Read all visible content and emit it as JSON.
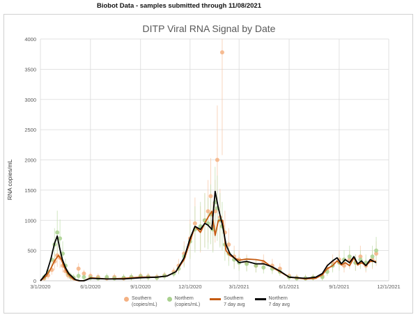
{
  "header": {
    "text": "Biobot Data - samples submitted through 11/08/2021"
  },
  "colors": {
    "southern_dot": "#f4b183",
    "northern_dot": "#a9d18e",
    "southern_line": "#c55a11",
    "northern_line": "#000000",
    "southern_err": "#f8cbad",
    "northern_err": "#c5e0b4",
    "grid": "#d9d9d9"
  },
  "chart_data": {
    "type": "scatter",
    "title": "DITP Viral RNA Signal by Date",
    "ylabel": "RNA copies/mL",
    "xlabel": "",
    "ylim": [
      0,
      4000
    ],
    "yticks": [
      "0",
      "500",
      "1000",
      "1500",
      "2000",
      "2500",
      "3000",
      "3500",
      "4000"
    ],
    "xticks": [
      "3/1/2020",
      "6/1/2020",
      "9/1/2020",
      "12/1/2020",
      "3/1/2021",
      "6/1/2021",
      "9/1/2021",
      "12/1/2021"
    ],
    "grid": true,
    "legend_position": "bottom",
    "series": [
      {
        "name": "Southern (copies/mL)",
        "kind": "points",
        "x": [
          "2020-03-08",
          "2020-03-15",
          "2020-03-22",
          "2020-03-27",
          "2020-04-01",
          "2020-04-06",
          "2020-04-11",
          "2020-04-16",
          "2020-04-21",
          "2020-04-26",
          "2020-05-01",
          "2020-05-10",
          "2020-05-20",
          "2020-06-01",
          "2020-06-15",
          "2020-07-01",
          "2020-07-15",
          "2020-08-01",
          "2020-08-15",
          "2020-09-01",
          "2020-09-15",
          "2020-10-01",
          "2020-10-15",
          "2020-11-01",
          "2020-11-10",
          "2020-11-20",
          "2020-12-01",
          "2020-12-10",
          "2020-12-20",
          "2020-12-28",
          "2021-01-03",
          "2021-01-08",
          "2021-01-12",
          "2021-01-16",
          "2021-01-20",
          "2021-01-25",
          "2021-01-29",
          "2021-02-03",
          "2021-02-10",
          "2021-02-20",
          "2021-03-01",
          "2021-03-15",
          "2021-04-01",
          "2021-04-15",
          "2021-05-01",
          "2021-05-15",
          "2021-06-01",
          "2021-06-15",
          "2021-07-01",
          "2021-07-15",
          "2021-08-01",
          "2021-08-10",
          "2021-08-20",
          "2021-09-01",
          "2021-09-10",
          "2021-09-20",
          "2021-10-01",
          "2021-10-10",
          "2021-10-20",
          "2021-11-01",
          "2021-11-08"
        ],
        "values": [
          40,
          90,
          180,
          320,
          420,
          380,
          250,
          160,
          90,
          60,
          40,
          200,
          120,
          80,
          60,
          40,
          60,
          40,
          60,
          80,
          70,
          60,
          90,
          150,
          250,
          450,
          700,
          950,
          850,
          1000,
          1150,
          1400,
          900,
          1150,
          2000,
          1050,
          3780,
          800,
          600,
          400,
          350,
          300,
          250,
          300,
          250,
          200,
          80,
          50,
          40,
          50,
          80,
          200,
          300,
          350,
          250,
          350,
          300,
          400,
          250,
          350,
          450
        ]
      },
      {
        "name": "Northern (copies/mL)",
        "kind": "points",
        "x": [
          "2020-03-08",
          "2020-03-15",
          "2020-03-22",
          "2020-03-27",
          "2020-04-01",
          "2020-04-06",
          "2020-04-11",
          "2020-04-16",
          "2020-04-21",
          "2020-04-26",
          "2020-05-01",
          "2020-05-10",
          "2020-05-20",
          "2020-06-01",
          "2020-06-15",
          "2020-07-01",
          "2020-07-15",
          "2020-08-01",
          "2020-08-15",
          "2020-09-01",
          "2020-09-15",
          "2020-10-01",
          "2020-10-15",
          "2020-11-01",
          "2020-11-10",
          "2020-11-20",
          "2020-12-01",
          "2020-12-10",
          "2020-12-20",
          "2020-12-28",
          "2021-01-03",
          "2021-01-08",
          "2021-01-12",
          "2021-01-16",
          "2021-01-20",
          "2021-01-25",
          "2021-01-29",
          "2021-02-03",
          "2021-02-10",
          "2021-02-20",
          "2021-03-01",
          "2021-03-15",
          "2021-04-01",
          "2021-04-15",
          "2021-05-01",
          "2021-05-15",
          "2021-06-01",
          "2021-06-15",
          "2021-07-01",
          "2021-07-15",
          "2021-08-01",
          "2021-08-10",
          "2021-08-20",
          "2021-09-01",
          "2021-09-10",
          "2021-09-20",
          "2021-10-01",
          "2021-10-10",
          "2021-10-20",
          "2021-11-01",
          "2021-11-08"
        ],
        "values": [
          60,
          150,
          350,
          600,
          800,
          700,
          450,
          250,
          120,
          70,
          50,
          80,
          60,
          50,
          40,
          60,
          40,
          50,
          60,
          70,
          60,
          50,
          80,
          120,
          200,
          400,
          650,
          850,
          900,
          1000,
          950,
          1100,
          850,
          1300,
          1200,
          1000,
          900,
          600,
          450,
          350,
          300,
          280,
          250,
          220,
          200,
          150,
          60,
          40,
          40,
          50,
          60,
          150,
          250,
          300,
          350,
          400,
          300,
          350,
          300,
          400,
          500
        ]
      },
      {
        "name": "Southern 7 day avg",
        "kind": "line",
        "x": [
          "2020-03-01",
          "2020-03-12",
          "2020-03-20",
          "2020-03-27",
          "2020-04-03",
          "2020-04-08",
          "2020-04-14",
          "2020-04-20",
          "2020-04-26",
          "2020-05-02",
          "2020-05-10",
          "2020-05-20",
          "2020-06-01",
          "2020-07-01",
          "2020-08-01",
          "2020-09-01",
          "2020-10-01",
          "2020-10-20",
          "2020-11-05",
          "2020-11-20",
          "2020-12-01",
          "2020-12-10",
          "2020-12-20",
          "2020-12-28",
          "2021-01-03",
          "2021-01-10",
          "2021-01-16",
          "2021-01-22",
          "2021-01-30",
          "2021-02-05",
          "2021-02-12",
          "2021-02-20",
          "2021-03-01",
          "2021-03-15",
          "2021-04-01",
          "2021-04-15",
          "2021-05-01",
          "2021-05-15",
          "2021-06-01",
          "2021-07-01",
          "2021-07-20",
          "2021-08-01",
          "2021-08-10",
          "2021-08-20",
          "2021-08-28",
          "2021-09-05",
          "2021-09-12",
          "2021-09-20",
          "2021-09-28",
          "2021-10-05",
          "2021-10-12",
          "2021-10-20",
          "2021-10-28",
          "2021-11-08"
        ],
        "values": [
          0,
          80,
          200,
          330,
          420,
          360,
          220,
          120,
          60,
          20,
          0,
          0,
          50,
          30,
          40,
          60,
          60,
          80,
          150,
          350,
          650,
          900,
          800,
          950,
          1050,
          1150,
          750,
          1000,
          1000,
          500,
          420,
          380,
          340,
          360,
          350,
          330,
          220,
          150,
          60,
          30,
          40,
          100,
          200,
          250,
          330,
          260,
          300,
          250,
          380,
          260,
          300,
          250,
          320,
          320
        ]
      },
      {
        "name": "Northern 7 day avg",
        "kind": "line",
        "x": [
          "2020-03-01",
          "2020-03-12",
          "2020-03-20",
          "2020-03-27",
          "2020-04-01",
          "2020-04-05",
          "2020-04-10",
          "2020-04-16",
          "2020-04-22",
          "2020-04-28",
          "2020-05-04",
          "2020-05-12",
          "2020-05-20",
          "2020-06-01",
          "2020-07-01",
          "2020-08-01",
          "2020-09-01",
          "2020-10-01",
          "2020-10-20",
          "2020-11-05",
          "2020-11-20",
          "2020-12-01",
          "2020-12-10",
          "2020-12-20",
          "2020-12-28",
          "2021-01-03",
          "2021-01-10",
          "2021-01-16",
          "2021-01-22",
          "2021-01-30",
          "2021-02-05",
          "2021-02-12",
          "2021-02-20",
          "2021-03-01",
          "2021-03-15",
          "2021-04-01",
          "2021-04-15",
          "2021-05-01",
          "2021-05-15",
          "2021-06-01",
          "2021-07-01",
          "2021-07-20",
          "2021-08-01",
          "2021-08-10",
          "2021-08-20",
          "2021-08-28",
          "2021-09-05",
          "2021-09-12",
          "2021-09-20",
          "2021-09-28",
          "2021-10-05",
          "2021-10-12",
          "2021-10-20",
          "2021-10-28",
          "2021-11-08"
        ],
        "values": [
          0,
          120,
          350,
          620,
          740,
          560,
          360,
          220,
          120,
          70,
          20,
          0,
          0,
          40,
          30,
          30,
          50,
          60,
          80,
          150,
          380,
          700,
          900,
          850,
          950,
          920,
          850,
          1480,
          1200,
          900,
          600,
          450,
          380,
          300,
          320,
          280,
          280,
          230,
          160,
          60,
          40,
          60,
          120,
          250,
          330,
          380,
          280,
          350,
          300,
          400,
          280,
          330,
          250,
          350,
          300
        ]
      }
    ]
  },
  "legend": [
    {
      "line1": "Southern",
      "line2": "(copies/mL)"
    },
    {
      "line1": "Northern",
      "line2": "(copies/mL)"
    },
    {
      "line1": "Southern",
      "line2": "7 day avg"
    },
    {
      "line1": "Northern",
      "line2": "7 day avg"
    }
  ]
}
